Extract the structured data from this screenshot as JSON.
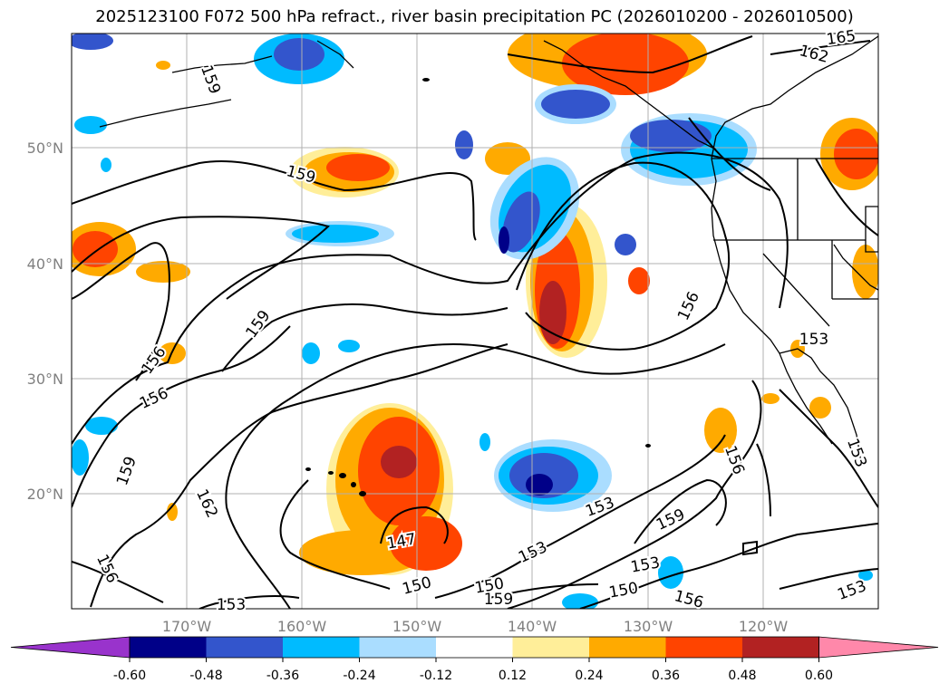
{
  "title": "2025123100 F072 500 hPa refract., river basin precipitation PC (2026010200 - 2026010500)",
  "map": {
    "lat_labels": [
      "50°N",
      "40°N",
      "30°N",
      "20°N"
    ],
    "lon_labels": [
      "170°W",
      "160°W",
      "150°W",
      "140°W",
      "130°W",
      "120°W"
    ],
    "contour_labels": [
      "165",
      "162",
      "159",
      "159",
      "159",
      "159",
      "159",
      "159",
      "156",
      "156",
      "156",
      "156",
      "156",
      "156",
      "153",
      "153",
      "153",
      "153",
      "153",
      "153",
      "153",
      "162",
      "147",
      "150",
      "150",
      "150"
    ]
  },
  "colorbar": {
    "colors": [
      "#9933cc",
      "#000088",
      "#3355cc",
      "#00bbff",
      "#aaddff",
      "#ffffff",
      "#ffee99",
      "#ffaa00",
      "#ff4400",
      "#b22222",
      "#ff88aa"
    ],
    "ticks": [
      "-0.60",
      "-0.48",
      "-0.36",
      "-0.24",
      "-0.12",
      "0.12",
      "0.24",
      "0.36",
      "0.48",
      "0.60"
    ]
  }
}
